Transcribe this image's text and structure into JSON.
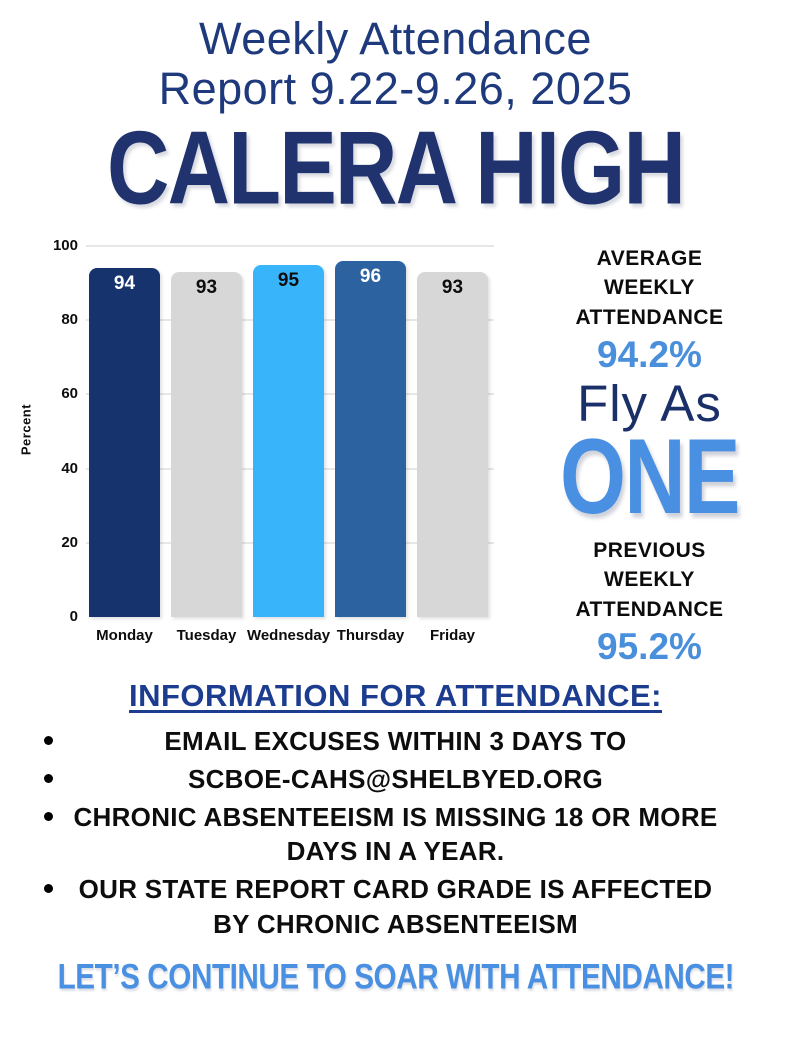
{
  "header": {
    "title_line1": "Weekly Attendance",
    "title_line2": "Report 9.22-9.26, 2025",
    "school_name": "CALERA HIGH"
  },
  "chart_data": {
    "type": "bar",
    "title": "",
    "categories": [
      "Monday",
      "Tuesday",
      "Wednesday",
      "Thursday",
      "Friday"
    ],
    "values": [
      94,
      93,
      95,
      96,
      93
    ],
    "bar_colors": [
      "#16336e",
      "#d7d7d7",
      "#38b5fa",
      "#2d62a0",
      "#d7d7d7"
    ],
    "value_label_colors": [
      "#ffffff",
      "#0d0d0d",
      "#0d0d0d",
      "#ffffff",
      "#0d0d0d"
    ],
    "xlabel": "",
    "ylabel": "Percent",
    "yticks": [
      0,
      20,
      40,
      60,
      80,
      100
    ],
    "ylim": [
      0,
      100
    ],
    "grid": true,
    "legend": false
  },
  "stats": {
    "average_label": "AVERAGE WEEKLY ATTENDANCE",
    "average_value": "94.2%",
    "motto_line1": "Fly As",
    "motto_line2": "ONE",
    "previous_label": "PREVIOUS WEEKLY ATTENDANCE",
    "previous_value": "95.2%"
  },
  "info": {
    "heading": "INFORMATION FOR ATTENDANCE:",
    "bullets": [
      {
        "lines": [
          "EMAIL EXCUSES WITHIN 3 DAYS TO"
        ]
      },
      {
        "lines": [
          "SCBOE-CAHS@SHELBYED.ORG"
        ]
      },
      {
        "lines": [
          "CHRONIC ABSENTEEISM IS MISSING 18 OR MORE",
          "DAYS IN A YEAR."
        ]
      },
      {
        "lines": [
          "OUR STATE REPORT CARD GRADE IS AFFECTED",
          "BY CHRONIC ABSENTEEISM"
        ]
      }
    ]
  },
  "footer": {
    "message": "LET’S CONTINUE TO SOAR WITH ATTENDANCE!"
  },
  "colors": {
    "title_navy": "#1e3a7c",
    "school_navy": "#21336e",
    "accent_blue": "#4a90e2",
    "value_blue": "#4a8fdb",
    "heading_blue": "#1c3c8f",
    "bar_navy": "#16336e",
    "bar_steel": "#2d62a0",
    "bar_sky": "#38b5fa",
    "bar_gray": "#d7d7d7",
    "gridline": "#e7e7e7"
  }
}
